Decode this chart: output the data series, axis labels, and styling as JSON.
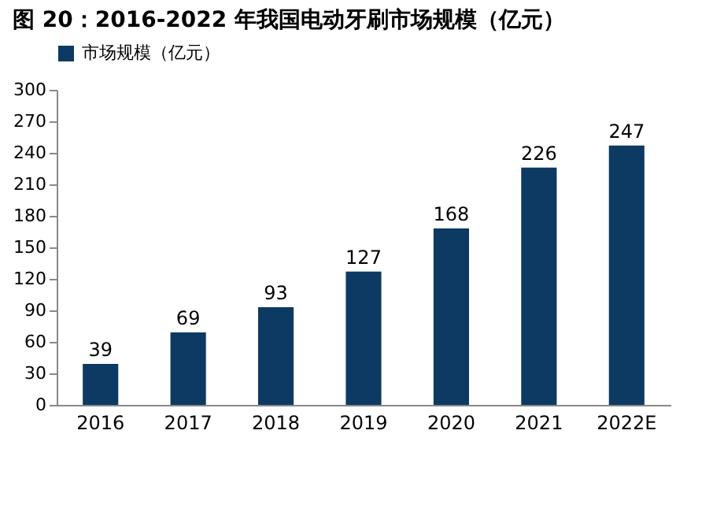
{
  "chart_data": {
    "type": "bar",
    "title": "图 20：2016-2022 年我国电动牙刷市场规模（亿元）",
    "categories": [
      "2016",
      "2017",
      "2018",
      "2019",
      "2020",
      "2021",
      "2022E"
    ],
    "series": [
      {
        "name": "市场规模（亿元）",
        "color": "#0d3a63",
        "values": [
          39,
          69,
          93,
          127,
          168,
          226,
          247
        ]
      }
    ],
    "ylim": [
      0,
      300
    ],
    "yticks": [
      0,
      30,
      60,
      90,
      120,
      150,
      180,
      210,
      240,
      270,
      300
    ],
    "data_labels": true,
    "legend": "top",
    "grid": false
  }
}
